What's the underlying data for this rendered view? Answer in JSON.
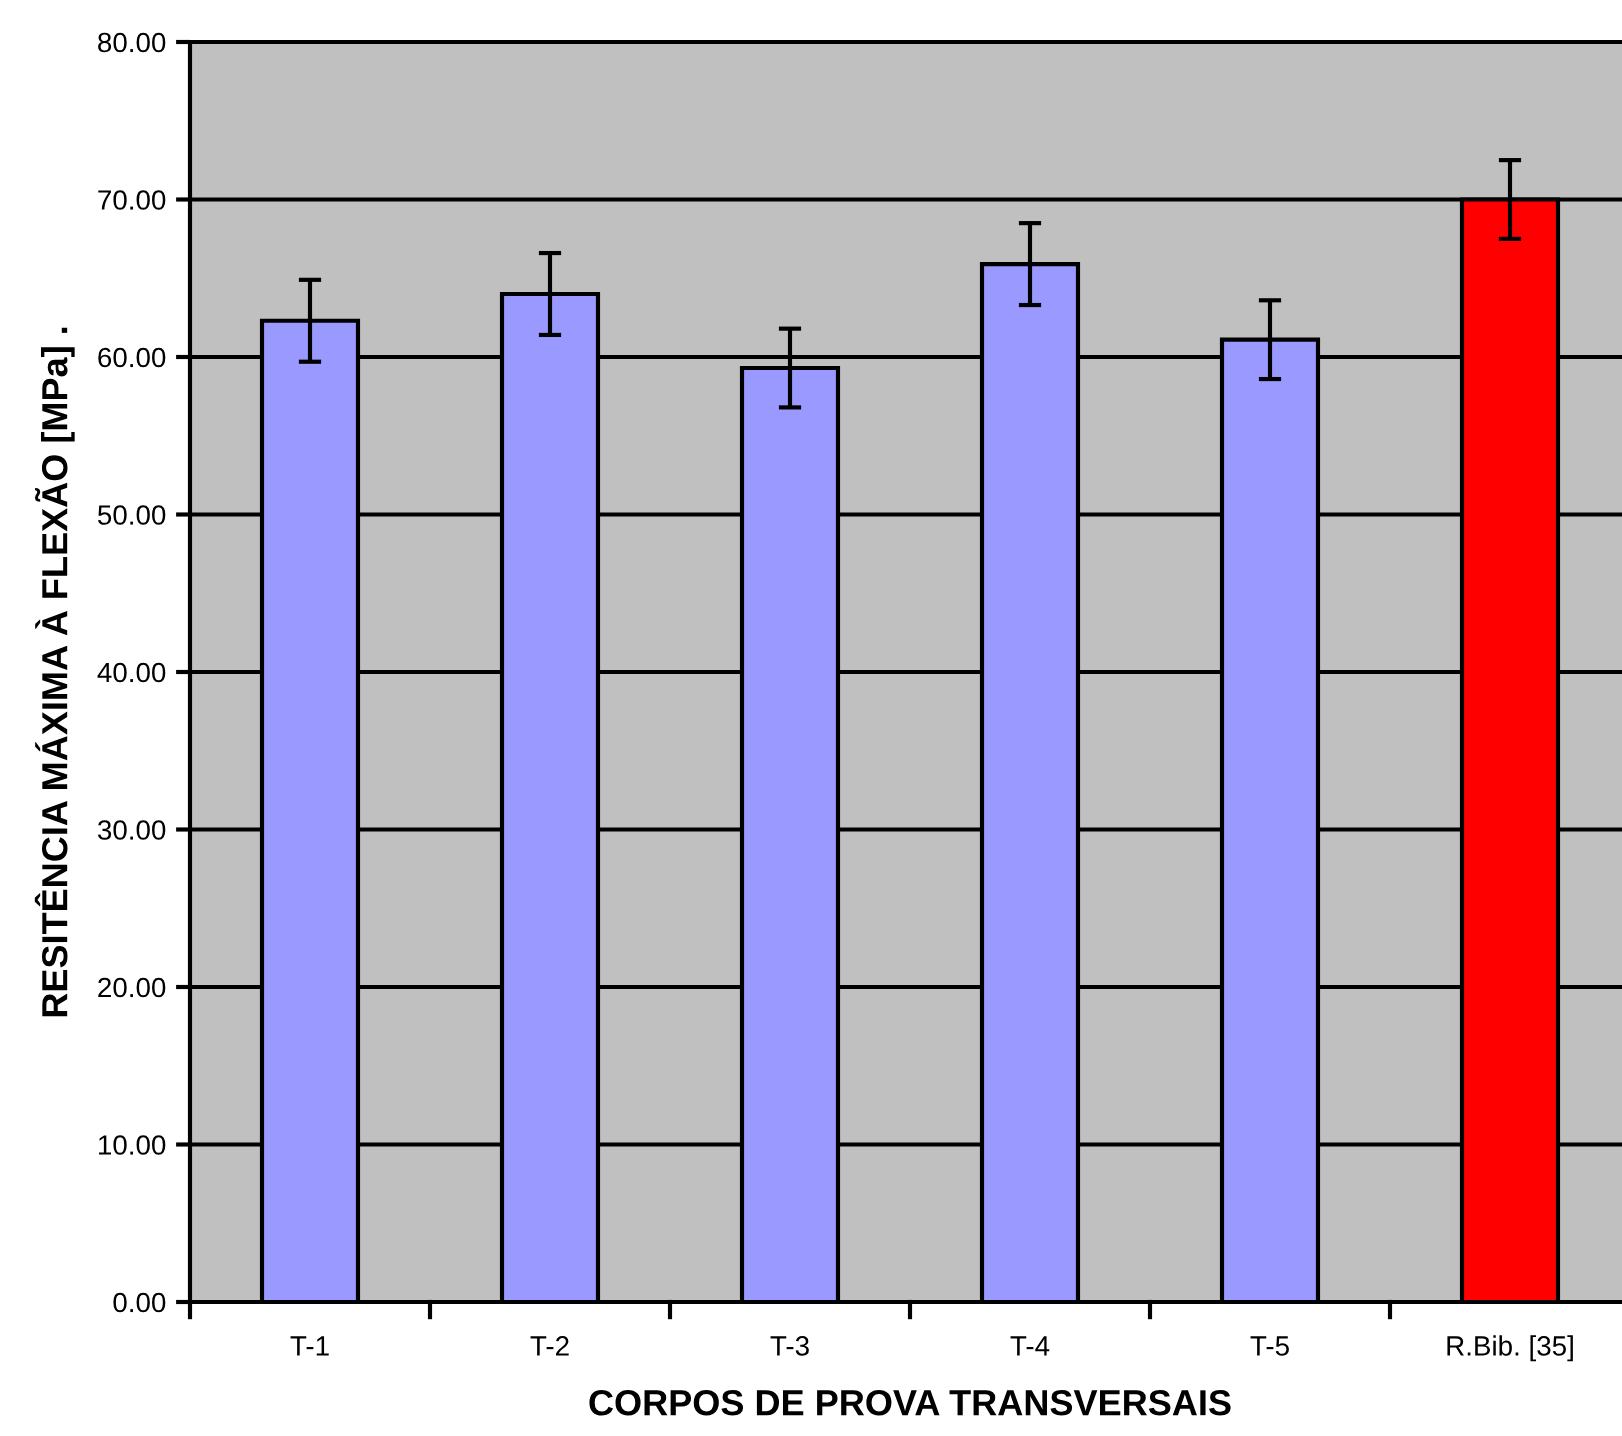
{
  "chart_data": {
    "type": "bar",
    "xlabel": "CORPOS DE PROVA TRANSVERSAIS",
    "ylabel": "RESITÊNCIA MÁXIMA À FLEXÃO [MPa] .",
    "categories": [
      "T-1",
      "T-2",
      "T-3",
      "T-4",
      "T-5",
      "R.Bib. [35]"
    ],
    "values": [
      62.3,
      64.0,
      59.3,
      65.9,
      61.1,
      70.0
    ],
    "colors": [
      "#9999ff",
      "#9999ff",
      "#9999ff",
      "#9999ff",
      "#9999ff",
      "#ff0000"
    ],
    "errors": [
      2.6,
      2.6,
      2.5,
      2.6,
      2.5,
      2.5
    ],
    "ylim": [
      0,
      80
    ],
    "yticks": [
      {
        "value": 0,
        "label": "0.00"
      },
      {
        "value": 10,
        "label": "10.00"
      },
      {
        "value": 20,
        "label": "20.00"
      },
      {
        "value": 30,
        "label": "30.00"
      },
      {
        "value": 40,
        "label": "40.00"
      },
      {
        "value": 50,
        "label": "50.00"
      },
      {
        "value": 60,
        "label": "60.00"
      },
      {
        "value": 70,
        "label": "70.00"
      },
      {
        "value": 80,
        "label": "80.00"
      }
    ],
    "grid": "y"
  }
}
